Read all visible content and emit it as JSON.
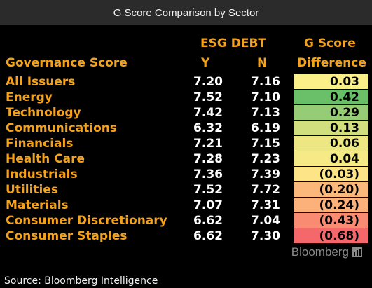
{
  "title": "G Score Comparison by Sector",
  "source": "Source: Bloomberg Intelligence",
  "brand": "Bloomberg",
  "headers": {
    "governance": "Governance Score",
    "esg_debt": "ESG DEBT",
    "y": "Y",
    "n": "N",
    "g_score": "G Score",
    "difference": "Difference"
  },
  "colors": {
    "header_text": "#f4a21c",
    "label_text": "#f4a21c",
    "value_text": "#ffffff",
    "background": "#000000",
    "title_bar": "#2b2b2b"
  },
  "chart_data": {
    "type": "table",
    "title": "G Score Comparison by Sector",
    "columns": [
      "Governance Score",
      "ESG DEBT Y",
      "ESG DEBT N",
      "G Score Difference"
    ],
    "rows": [
      {
        "sector": "All Issuers",
        "y": "7.20",
        "n": "7.16",
        "diff": "0.03",
        "color": "#fbef8a"
      },
      {
        "sector": "Energy",
        "y": "7.52",
        "n": "7.10",
        "diff": "0.42",
        "color": "#6abf69"
      },
      {
        "sector": "Technology",
        "y": "7.42",
        "n": "7.13",
        "diff": "0.29",
        "color": "#96cc75"
      },
      {
        "sector": "Communications",
        "y": "6.32",
        "n": "6.19",
        "diff": "0.13",
        "color": "#d1df7e"
      },
      {
        "sector": "Financials",
        "y": "7.21",
        "n": "7.15",
        "diff": "0.06",
        "color": "#ece683"
      },
      {
        "sector": "Health Care",
        "y": "7.28",
        "n": "7.23",
        "diff": "0.04",
        "color": "#f5ea85"
      },
      {
        "sector": "Industrials",
        "y": "7.36",
        "n": "7.39",
        "diff": "(0.03)",
        "color": "#fde486"
      },
      {
        "sector": "Utilities",
        "y": "7.52",
        "n": "7.72",
        "diff": "(0.20)",
        "color": "#fcb87a"
      },
      {
        "sector": "Materials",
        "y": "7.07",
        "n": "7.31",
        "diff": "(0.24)",
        "color": "#fbb179"
      },
      {
        "sector": "Consumer Discretionary",
        "y": "6.62",
        "n": "7.04",
        "diff": "(0.43)",
        "color": "#f88b72"
      },
      {
        "sector": "Consumer Staples",
        "y": "6.62",
        "n": "7.30",
        "diff": "(0.68)",
        "color": "#f4676b"
      }
    ]
  }
}
